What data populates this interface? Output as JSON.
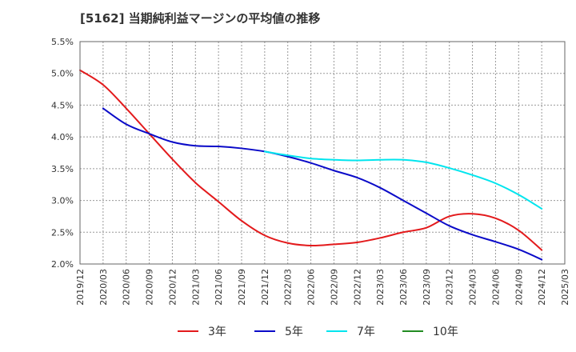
{
  "chart_data": {
    "type": "line",
    "title": "[5162]  当期純利益マージンの平均値の推移",
    "xlabel": "",
    "ylabel": "",
    "ylim": [
      2.0,
      5.5
    ],
    "y_tick_labels": [
      "5.5%",
      "5.0%",
      "4.5%",
      "4.0%",
      "3.5%",
      "3.0%",
      "2.5%",
      "2.0%"
    ],
    "y_tick_values": [
      5.5,
      5.0,
      4.5,
      4.0,
      3.5,
      3.0,
      2.5,
      2.0
    ],
    "x_tick_labels": [
      "2019/12",
      "2020/03",
      "2020/06",
      "2020/09",
      "2020/12",
      "2021/03",
      "2021/06",
      "2021/09",
      "2021/12",
      "2022/03",
      "2022/06",
      "2022/09",
      "2022/12",
      "2023/03",
      "2023/06",
      "2023/09",
      "2023/12",
      "2024/03",
      "2024/06",
      "2024/09",
      "2024/12",
      "2025/03"
    ],
    "grid": true,
    "legend_position": "bottom",
    "series": [
      {
        "name": "3年",
        "color": "#e31a1c",
        "points": [
          [
            "2019/12",
            5.05
          ],
          [
            "2020/03",
            4.82
          ],
          [
            "2020/06",
            4.45
          ],
          [
            "2020/09",
            4.05
          ],
          [
            "2020/12",
            3.65
          ],
          [
            "2021/03",
            3.28
          ],
          [
            "2021/06",
            2.98
          ],
          [
            "2021/09",
            2.68
          ],
          [
            "2021/12",
            2.45
          ],
          [
            "2022/03",
            2.33
          ],
          [
            "2022/06",
            2.29
          ],
          [
            "2022/09",
            2.31
          ],
          [
            "2022/12",
            2.34
          ],
          [
            "2023/03",
            2.41
          ],
          [
            "2023/06",
            2.5
          ],
          [
            "2023/09",
            2.57
          ],
          [
            "2023/12",
            2.75
          ],
          [
            "2024/03",
            2.79
          ],
          [
            "2024/06",
            2.72
          ],
          [
            "2024/09",
            2.53
          ],
          [
            "2024/12",
            2.22
          ]
        ]
      },
      {
        "name": "5年",
        "color": "#0a0ac8",
        "points": [
          [
            "2020/03",
            4.45
          ],
          [
            "2020/06",
            4.2
          ],
          [
            "2020/09",
            4.05
          ],
          [
            "2020/12",
            3.92
          ],
          [
            "2021/03",
            3.86
          ],
          [
            "2021/06",
            3.85
          ],
          [
            "2021/09",
            3.82
          ],
          [
            "2021/12",
            3.77
          ],
          [
            "2022/03",
            3.69
          ],
          [
            "2022/06",
            3.59
          ],
          [
            "2022/09",
            3.47
          ],
          [
            "2022/12",
            3.36
          ],
          [
            "2023/03",
            3.2
          ],
          [
            "2023/06",
            3.0
          ],
          [
            "2023/09",
            2.8
          ],
          [
            "2023/12",
            2.6
          ],
          [
            "2024/03",
            2.46
          ],
          [
            "2024/06",
            2.35
          ],
          [
            "2024/09",
            2.23
          ],
          [
            "2024/12",
            2.07
          ]
        ]
      },
      {
        "name": "7年",
        "color": "#00e5ee",
        "points": [
          [
            "2021/12",
            3.77
          ],
          [
            "2022/03",
            3.71
          ],
          [
            "2022/06",
            3.66
          ],
          [
            "2022/09",
            3.64
          ],
          [
            "2022/12",
            3.63
          ],
          [
            "2023/03",
            3.64
          ],
          [
            "2023/06",
            3.64
          ],
          [
            "2023/09",
            3.6
          ],
          [
            "2023/12",
            3.51
          ],
          [
            "2024/03",
            3.4
          ],
          [
            "2024/06",
            3.27
          ],
          [
            "2024/09",
            3.09
          ],
          [
            "2024/12",
            2.87
          ]
        ]
      },
      {
        "name": "10年",
        "color": "#228b22",
        "points": []
      }
    ]
  }
}
